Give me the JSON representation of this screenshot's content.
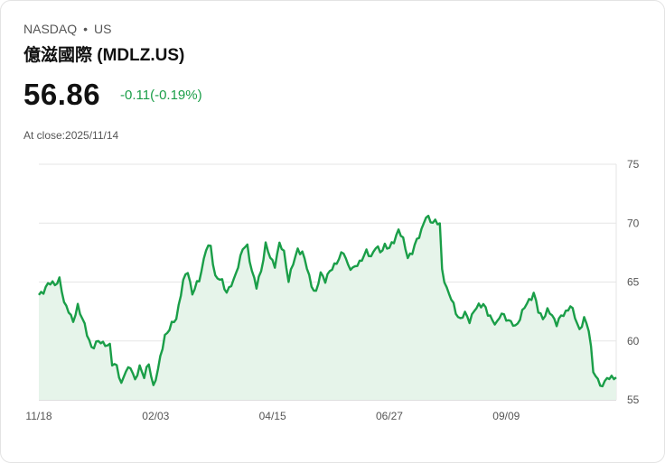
{
  "header": {
    "exchange": "NASDAQ",
    "separator": "•",
    "market": "US",
    "title": "億滋國際 (MDLZ.US)",
    "price": "56.86",
    "change": "-0.11(-0.19%)",
    "close_label": "At close:2025/11/14"
  },
  "colors": {
    "line": "#1a9e48",
    "fill": "#e6f4ea",
    "change": "#1a9e48"
  },
  "chart_data": {
    "type": "area",
    "title": "",
    "xlabel": "",
    "ylabel": "",
    "ylim": [
      55,
      75
    ],
    "y_ticks": [
      75,
      70,
      65,
      60,
      55
    ],
    "x_ticks": [
      {
        "label": "11/18",
        "index": 0
      },
      {
        "label": "02/03",
        "index": 51
      },
      {
        "label": "04/15",
        "index": 102
      },
      {
        "label": "06/27",
        "index": 153
      },
      {
        "label": "09/09",
        "index": 204
      }
    ],
    "grid": true,
    "y_axis_side": "right",
    "n_points": 253,
    "keypoints": [
      [
        0,
        63.8
      ],
      [
        4,
        64.8
      ],
      [
        7,
        64.9
      ],
      [
        9,
        65.2
      ],
      [
        11,
        63.2
      ],
      [
        13,
        62.7
      ],
      [
        15,
        61.5
      ],
      [
        17,
        63.0
      ],
      [
        19,
        62.0
      ],
      [
        21,
        60.5
      ],
      [
        23,
        59.5
      ],
      [
        26,
        59.9
      ],
      [
        29,
        59.8
      ],
      [
        31,
        59.5
      ],
      [
        32,
        58.0
      ],
      [
        34,
        58.0
      ],
      [
        36,
        56.2
      ],
      [
        38,
        57.5
      ],
      [
        40,
        57.9
      ],
      [
        42,
        56.5
      ],
      [
        44,
        57.9
      ],
      [
        46,
        57.0
      ],
      [
        48,
        58.0
      ],
      [
        50,
        56.2
      ],
      [
        52,
        57.5
      ],
      [
        55,
        60.5
      ],
      [
        57,
        61.0
      ],
      [
        60,
        62.0
      ],
      [
        63,
        65.0
      ],
      [
        65,
        66.0
      ],
      [
        67,
        64.0
      ],
      [
        70,
        65.2
      ],
      [
        73,
        67.8
      ],
      [
        75,
        68.0
      ],
      [
        77,
        65.5
      ],
      [
        80,
        65.0
      ],
      [
        82,
        64.2
      ],
      [
        85,
        65.0
      ],
      [
        87,
        66.5
      ],
      [
        89,
        67.8
      ],
      [
        91,
        68.0
      ],
      [
        93,
        66.0
      ],
      [
        95,
        64.5
      ],
      [
        97,
        66.0
      ],
      [
        99,
        68.2
      ],
      [
        101,
        67.0
      ],
      [
        103,
        66.5
      ],
      [
        105,
        68.2
      ],
      [
        107,
        67.5
      ],
      [
        109,
        65.2
      ],
      [
        111,
        66.5
      ],
      [
        113,
        67.8
      ],
      [
        115,
        67.5
      ],
      [
        117,
        66.2
      ],
      [
        119,
        64.8
      ],
      [
        121,
        64.0
      ],
      [
        123,
        65.8
      ],
      [
        125,
        65.2
      ],
      [
        127,
        65.8
      ],
      [
        129,
        66.5
      ],
      [
        131,
        67.0
      ],
      [
        133,
        67.5
      ],
      [
        135,
        66.5
      ],
      [
        137,
        66.0
      ],
      [
        139,
        66.5
      ],
      [
        141,
        67.0
      ],
      [
        143,
        67.5
      ],
      [
        145,
        67.2
      ],
      [
        147,
        68.0
      ],
      [
        149,
        67.5
      ],
      [
        151,
        68.2
      ],
      [
        153,
        67.8
      ],
      [
        155,
        68.5
      ],
      [
        157,
        69.5
      ],
      [
        159,
        68.5
      ],
      [
        161,
        67.2
      ],
      [
        163,
        67.5
      ],
      [
        165,
        68.5
      ],
      [
        167,
        69.5
      ],
      [
        169,
        70.5
      ],
      [
        171,
        70.2
      ],
      [
        173,
        70.2
      ],
      [
        175,
        69.8
      ],
      [
        176,
        66.0
      ],
      [
        178,
        64.5
      ],
      [
        180,
        63.5
      ],
      [
        182,
        62.5
      ],
      [
        184,
        61.8
      ],
      [
        186,
        62.3
      ],
      [
        188,
        61.8
      ],
      [
        190,
        62.5
      ],
      [
        192,
        63.0
      ],
      [
        194,
        63.2
      ],
      [
        196,
        62.2
      ],
      [
        198,
        61.8
      ],
      [
        200,
        61.5
      ],
      [
        202,
        62.3
      ],
      [
        204,
        62.0
      ],
      [
        206,
        61.5
      ],
      [
        208,
        61.2
      ],
      [
        210,
        62.0
      ],
      [
        212,
        62.8
      ],
      [
        214,
        63.5
      ],
      [
        216,
        64.0
      ],
      [
        218,
        62.5
      ],
      [
        220,
        62.0
      ],
      [
        222,
        62.5
      ],
      [
        224,
        62.2
      ],
      [
        226,
        61.5
      ],
      [
        228,
        62.0
      ],
      [
        230,
        62.5
      ],
      [
        232,
        63.0
      ],
      [
        234,
        62.0
      ],
      [
        236,
        61.0
      ],
      [
        238,
        61.8
      ],
      [
        240,
        61.0
      ],
      [
        241,
        59.5
      ],
      [
        242,
        57.5
      ],
      [
        244,
        56.5
      ],
      [
        246,
        56.2
      ],
      [
        248,
        57.0
      ],
      [
        249,
        56.5
      ],
      [
        250,
        57.0
      ],
      [
        252,
        56.9
      ]
    ]
  }
}
